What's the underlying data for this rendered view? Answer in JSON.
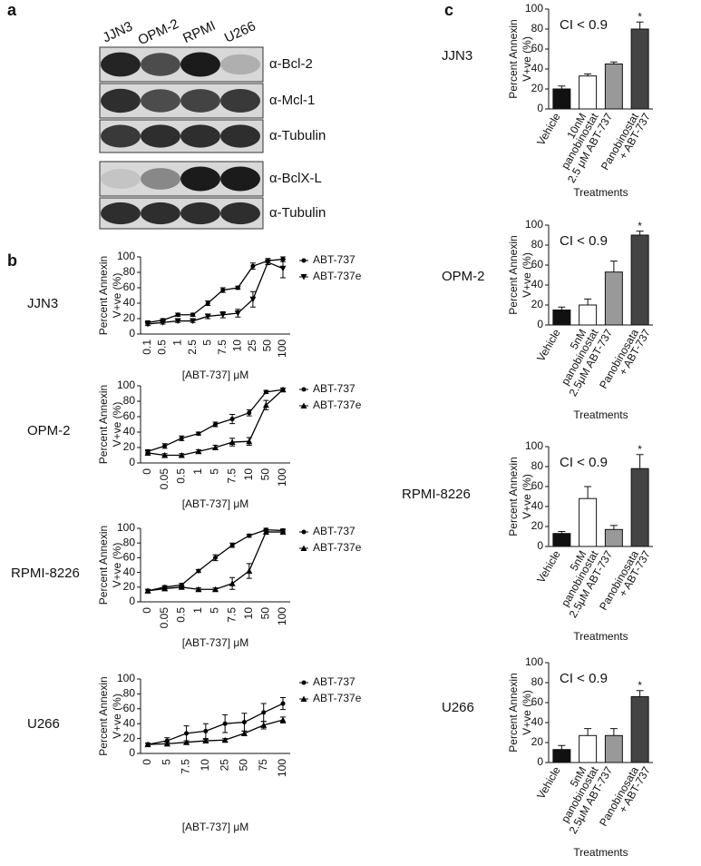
{
  "panel_labels": [
    "a",
    "b",
    "c"
  ],
  "blot": {
    "lanes": [
      "JJN3",
      "OPM-2",
      "RPMI",
      "U266"
    ],
    "bands": [
      "α-Bcl-2",
      "α-Mcl-1",
      "α-Tubulin",
      "α-BclX-L",
      "α-Tubulin"
    ]
  },
  "chart_data": [
    {
      "type": "line",
      "label": "JJN3",
      "xlabel": "[ABT-737] μM",
      "ylabel": [
        "Percent Annexin",
        "V+ve (%)"
      ],
      "categories": [
        "0.1",
        "0.5",
        "1",
        "2.5",
        "5",
        "7.5",
        "10",
        "25",
        "50",
        "100"
      ],
      "ylim": [
        0,
        100
      ],
      "yticks": [
        0,
        20,
        40,
        60,
        80,
        100
      ],
      "series": [
        {
          "name": "ABT-737",
          "marker": "circle",
          "color": "#000000",
          "values": [
            15,
            18,
            25,
            25,
            40,
            57,
            60,
            88,
            95,
            97
          ],
          "errors": [
            2,
            2,
            2,
            2,
            3,
            3,
            2,
            4,
            3,
            3
          ]
        },
        {
          "name": "ABT-737e",
          "marker": "triangle-down",
          "color": "#000000",
          "values": [
            13,
            15,
            17,
            17,
            23,
            25,
            27,
            45,
            93,
            85
          ],
          "errors": [
            2,
            2,
            2,
            2,
            3,
            4,
            5,
            10,
            3,
            12
          ]
        }
      ]
    },
    {
      "type": "line",
      "label": "OPM-2",
      "xlabel": "[ABT-737] μM",
      "ylabel": [
        "Percent Annexin",
        "V+ve (%)"
      ],
      "categories": [
        "0",
        "0.05",
        "0.5",
        "1",
        "5",
        "7.5",
        "10",
        "50",
        "100"
      ],
      "ylim": [
        0,
        100
      ],
      "yticks": [
        0,
        20,
        40,
        60,
        80,
        100
      ],
      "series": [
        {
          "name": "ABT-737",
          "marker": "circle",
          "color": "#000000",
          "values": [
            15,
            22,
            32,
            38,
            50,
            57,
            65,
            92,
            95
          ],
          "errors": [
            2,
            3,
            3,
            2,
            3,
            6,
            4,
            2,
            2
          ]
        },
        {
          "name": "ABT-737e",
          "marker": "triangle-up",
          "color": "#000000",
          "values": [
            13,
            10,
            10,
            15,
            20,
            27,
            28,
            75,
            95
          ],
          "errors": [
            3,
            2,
            2,
            2,
            3,
            5,
            5,
            6,
            2
          ]
        }
      ]
    },
    {
      "type": "line",
      "label": "RPMI-8226",
      "xlabel": "[ABT-737] μM",
      "ylabel": [
        "Percent Annexin",
        "V+ve (%)"
      ],
      "categories": [
        "0",
        "0.05",
        "0.5",
        "1",
        "5",
        "7.5",
        "10",
        "50",
        "100"
      ],
      "ylim": [
        0,
        100
      ],
      "yticks": [
        0,
        20,
        40,
        60,
        80,
        100
      ],
      "series": [
        {
          "name": "ABT-737",
          "marker": "circle",
          "color": "#000000",
          "values": [
            15,
            20,
            23,
            42,
            60,
            77,
            90,
            98,
            97
          ],
          "errors": [
            2,
            2,
            2,
            2,
            4,
            3,
            2,
            2,
            2
          ]
        },
        {
          "name": "ABT-737e",
          "marker": "triangle-up",
          "color": "#000000",
          "values": [
            15,
            18,
            20,
            17,
            17,
            25,
            42,
            95,
            95
          ],
          "errors": [
            2,
            2,
            2,
            2,
            2,
            8,
            10,
            3,
            3
          ]
        }
      ]
    },
    {
      "type": "line",
      "label": "U266",
      "xlabel": "[ABT-737] μM",
      "ylabel": [
        "Percent Annexin",
        "V+ve (%)"
      ],
      "categories": [
        "0",
        "5",
        "7.5",
        "10",
        "25",
        "50",
        "75",
        "100"
      ],
      "ylim": [
        0,
        100
      ],
      "yticks": [
        0,
        20,
        40,
        60,
        80,
        100
      ],
      "series": [
        {
          "name": "ABT-737",
          "marker": "circle",
          "color": "#000000",
          "values": [
            12,
            17,
            27,
            30,
            40,
            42,
            55,
            67
          ],
          "errors": [
            2,
            4,
            10,
            10,
            12,
            12,
            12,
            8
          ]
        },
        {
          "name": "ABT-737e",
          "marker": "triangle-up",
          "color": "#000000",
          "values": [
            12,
            13,
            15,
            17,
            18,
            27,
            38,
            45
          ],
          "errors": [
            2,
            2,
            2,
            2,
            2,
            3,
            5,
            4
          ]
        }
      ]
    },
    {
      "type": "bar",
      "label": "JJN3",
      "xlabel": "Treatments",
      "ylabel": [
        "Percent Annexin",
        "V+ve (%)"
      ],
      "annotation": "CI < 0.9",
      "star": "*",
      "categories": [
        [
          "Vehicle"
        ],
        [
          "10nM",
          "panobinostat"
        ],
        [
          "2.5 μM ABT-737"
        ],
        [
          "Panobinostat",
          "+ ABT-737"
        ]
      ],
      "values": [
        20,
        33,
        45,
        80
      ],
      "errors": [
        3,
        2,
        2,
        7
      ],
      "colors": [
        "#111111",
        "#ffffff",
        "#999999",
        "#444444"
      ],
      "ylim": [
        0,
        100
      ],
      "yticks": [
        0,
        20,
        40,
        60,
        80,
        100
      ]
    },
    {
      "type": "bar",
      "label": "OPM-2",
      "xlabel": "Treatments",
      "ylabel": [
        "Percent Annexin",
        "V+ve (%)"
      ],
      "annotation": "CI < 0.9",
      "star": "*",
      "categories": [
        [
          "Vehicle"
        ],
        [
          "5nM",
          "panobinostat"
        ],
        [
          "2.5μM ABT-737"
        ],
        [
          "Panobinosata",
          "+ ABT-737"
        ]
      ],
      "values": [
        15,
        20,
        53,
        90
      ],
      "errors": [
        3,
        6,
        11,
        4
      ],
      "colors": [
        "#111111",
        "#ffffff",
        "#999999",
        "#444444"
      ],
      "ylim": [
        0,
        100
      ],
      "yticks": [
        0,
        20,
        40,
        60,
        80,
        100
      ]
    },
    {
      "type": "bar",
      "label": "RPMI-8226",
      "xlabel": "Treatments",
      "ylabel": [
        "Percent Annexin",
        "V+ve (%)"
      ],
      "annotation": "CI < 0.9",
      "star": "*",
      "categories": [
        [
          "Vehicle"
        ],
        [
          "5nM",
          "panobinostat"
        ],
        [
          "2.5μM ABT-737"
        ],
        [
          "Panobinosata",
          "+ ABT-737"
        ]
      ],
      "values": [
        13,
        48,
        17,
        78
      ],
      "errors": [
        2,
        12,
        4,
        14
      ],
      "colors": [
        "#111111",
        "#ffffff",
        "#999999",
        "#444444"
      ],
      "ylim": [
        0,
        100
      ],
      "yticks": [
        0,
        20,
        40,
        60,
        80,
        100
      ]
    },
    {
      "type": "bar",
      "label": "U266",
      "xlabel": "Treatments",
      "ylabel": [
        "Percent Annexin",
        "V+ve (%)"
      ],
      "annotation": "CI < 0.9",
      "star": "*",
      "categories": [
        [
          "Vehicle"
        ],
        [
          "5nM",
          "panobinostat"
        ],
        [
          "2.5μM ABT-737"
        ],
        [
          "Panobinosata",
          "+ ABT-737"
        ]
      ],
      "values": [
        13,
        27,
        27,
        66
      ],
      "errors": [
        4,
        7,
        7,
        6
      ],
      "colors": [
        "#111111",
        "#ffffff",
        "#999999",
        "#444444"
      ],
      "ylim": [
        0,
        100
      ],
      "yticks": [
        0,
        20,
        40,
        60,
        80,
        100
      ]
    }
  ]
}
